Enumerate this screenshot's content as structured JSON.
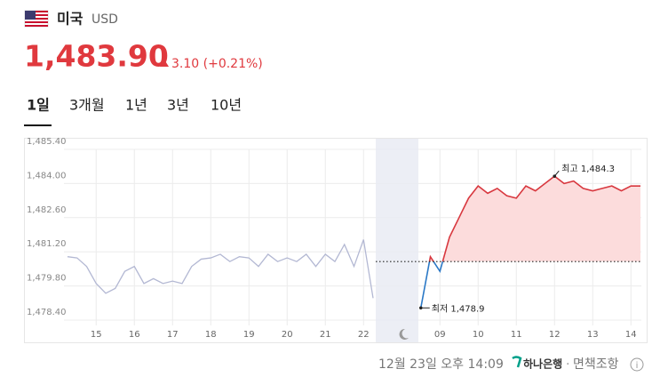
{
  "header": {
    "country": "미국",
    "currency": "USD",
    "price": "1,483.90",
    "change": "3.10 (+0.21%)",
    "tabs": [
      "1일",
      "3개월",
      "1년",
      "3년",
      "10년"
    ]
  },
  "footer": {
    "timestamp": "12월 23일 오후 14:09",
    "bank": "하나은행",
    "separator": "·",
    "disclaimer": "면책조항"
  },
  "chart_data": {
    "type": "line",
    "categories": [
      null,
      null,
      null,
      "15",
      null,
      null,
      null,
      "16",
      null,
      null,
      null,
      "17",
      null,
      null,
      null,
      "18",
      null,
      null,
      null,
      "19",
      null,
      null,
      null,
      "20",
      null,
      null,
      null,
      "21",
      null,
      null,
      null,
      "22",
      null,
      null,
      null,
      null,
      null,
      null,
      null,
      "09",
      null,
      null,
      null,
      "10",
      null,
      null,
      null,
      "11",
      null,
      null,
      null,
      "12",
      null,
      null,
      null,
      "13",
      null,
      null,
      null,
      "14",
      null
    ],
    "series": [
      {
        "color": "#b3b8d3",
        "values": [
          1481.0,
          1480.95,
          1480.6,
          1479.9,
          1479.5,
          1479.7,
          1480.4,
          1480.6,
          1479.9,
          1480.1,
          1479.9,
          1480.0,
          1479.9,
          1480.6,
          1480.9,
          1480.95,
          1481.1,
          1480.8,
          1481.0,
          1480.95,
          1480.6,
          1481.1,
          1480.8,
          1480.95,
          1480.8,
          1481.1,
          1480.6,
          1481.1,
          1480.8,
          1481.5,
          1480.6,
          1481.7,
          1479.3,
          null,
          null,
          null,
          null,
          null,
          null,
          null,
          null,
          null,
          null,
          null,
          null,
          null,
          null,
          null,
          null,
          null,
          null,
          null,
          null,
          null,
          null,
          null,
          null,
          null,
          null,
          null,
          null
        ]
      },
      {
        "color": "#d8383f",
        "below_color": "#2a78c6",
        "fill": "#fcdcdc",
        "values": [
          null,
          null,
          null,
          null,
          null,
          null,
          null,
          null,
          null,
          null,
          null,
          null,
          null,
          null,
          null,
          null,
          null,
          null,
          null,
          null,
          null,
          null,
          null,
          null,
          null,
          null,
          null,
          null,
          null,
          null,
          null,
          null,
          null,
          null,
          null,
          null,
          null,
          1478.9,
          1481.0,
          1480.4,
          1481.8,
          1482.6,
          1483.4,
          1483.9,
          1483.6,
          1483.8,
          1483.5,
          1483.4,
          1483.9,
          1483.7,
          1484.0,
          1484.3,
          1484.0,
          1484.1,
          1483.8,
          1483.7,
          1483.8,
          1483.9,
          1483.7,
          1483.9,
          1483.9
        ]
      }
    ],
    "baseline": 1480.8,
    "annotations": {
      "max": "최고 1,484.3",
      "min": "최저 1,478.9"
    },
    "ylim": [
      1478.4,
      1485.4
    ],
    "yticks": [
      {
        "value": 1478.4,
        "label": "1,478.40"
      },
      {
        "value": 1479.8,
        "label": "1,479.80"
      },
      {
        "value": 1481.2,
        "label": "1,481.20"
      },
      {
        "value": 1482.6,
        "label": "1,482.60"
      },
      {
        "value": 1484.0,
        "label": "1,484.00"
      },
      {
        "value": 1485.4,
        "label": "1,485.40"
      }
    ],
    "grid": true
  }
}
